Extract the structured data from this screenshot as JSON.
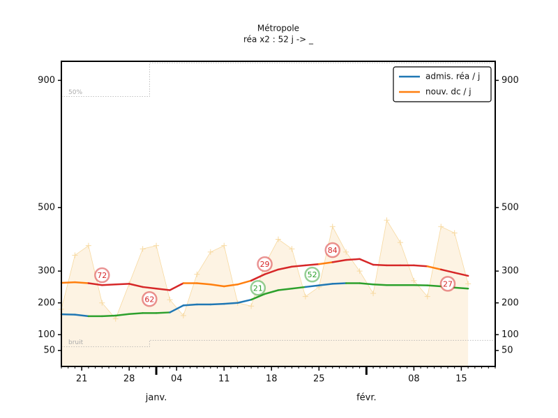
{
  "chart_data": {
    "type": "line",
    "title": "Métropole",
    "subtitle": "réa x2 : 52 j -> _",
    "x": [
      "12-18",
      "12-20",
      "12-22",
      "12-24",
      "12-26",
      "12-28",
      "12-30",
      "01-01",
      "01-03",
      "01-05",
      "01-07",
      "01-09",
      "01-11",
      "01-13",
      "01-15",
      "01-17",
      "01-19",
      "01-21",
      "01-23",
      "01-25",
      "01-27",
      "01-29",
      "01-31",
      "02-02",
      "02-04",
      "02-06",
      "02-08",
      "02-10",
      "02-12",
      "02-14",
      "02-16"
    ],
    "xlim": [
      "12-18",
      "02-20"
    ],
    "xticks": [
      {
        "value": "12-21",
        "label": "21"
      },
      {
        "value": "12-28",
        "label": "28"
      },
      {
        "value": "01-04",
        "label": "04"
      },
      {
        "value": "01-11",
        "label": "11"
      },
      {
        "value": "01-18",
        "label": "18"
      },
      {
        "value": "01-25",
        "label": "25"
      },
      {
        "value": "02-08",
        "label": "08"
      },
      {
        "value": "02-15",
        "label": "15"
      }
    ],
    "xticks_major": [
      {
        "value": "01-01",
        "label": "janv."
      },
      {
        "value": "02-01",
        "label": "févr."
      }
    ],
    "ylim": [
      0,
      960
    ],
    "yticks": [
      50,
      100,
      200,
      300,
      500,
      900
    ],
    "legend": "upper right",
    "daily": {
      "color": "#f7d9a0",
      "fill": "#fdf3e3",
      "values": [
        180,
        350,
        380,
        200,
        150,
        260,
        370,
        380,
        210,
        160,
        290,
        360,
        380,
        200,
        190,
        320,
        400,
        370,
        220,
        250,
        440,
        360,
        300,
        230,
        460,
        390,
        270,
        220,
        440,
        420,
        260
      ]
    },
    "references": [
      {
        "label": "50%",
        "color": "#aaaaaa",
        "values": [
          849,
          849,
          849,
          849,
          849,
          849,
          849,
          955,
          955,
          955,
          955,
          955,
          955,
          955,
          955,
          955,
          955,
          955,
          955,
          955,
          955,
          955,
          955,
          955,
          955,
          955,
          955,
          955,
          955,
          955,
          955
        ]
      },
      {
        "label": "bruit",
        "color": "#aaaaaa",
        "values": [
          62,
          62,
          62,
          62,
          62,
          62,
          62,
          82,
          82,
          82,
          82,
          82,
          82,
          82,
          82,
          82,
          82,
          82,
          82,
          82,
          82,
          82,
          82,
          82,
          82,
          82,
          82,
          82,
          82,
          82,
          82
        ]
      }
    ],
    "series": [
      {
        "name": "admis. réa / j",
        "color": "#1f77b4",
        "values": [
          164,
          163,
          158,
          158,
          160,
          165,
          168,
          168,
          170,
          192,
          195,
          195,
          197,
          200,
          210,
          228,
          240,
          245,
          250,
          255,
          260,
          262,
          262,
          258,
          256,
          256,
          256,
          255,
          252,
          248,
          245
        ],
        "point_colors": [
          "#1f77b4",
          "#1f77b4",
          "#2ca02c",
          "#2ca02c",
          "#2ca02c",
          "#2ca02c",
          "#2ca02c",
          "#2ca02c",
          "#1f77b4",
          "#1f77b4",
          "#1f77b4",
          "#1f77b4",
          "#1f77b4",
          "#1f77b4",
          "#2ca02c",
          "#2ca02c",
          "#2ca02c",
          "#2ca02c",
          "#1f77b4",
          "#1f77b4",
          "#1f77b4",
          "#2ca02c",
          "#2ca02c",
          "#2ca02c",
          "#2ca02c",
          "#2ca02c",
          "#2ca02c",
          "#2ca02c",
          "#2ca02c",
          "#2ca02c",
          "#2ca02c"
        ]
      },
      {
        "name": "nouv. dc / j",
        "color": "#ff7f0e",
        "values": [
          263,
          265,
          262,
          256,
          258,
          260,
          250,
          245,
          240,
          262,
          262,
          258,
          252,
          258,
          270,
          290,
          305,
          314,
          318,
          322,
          328,
          335,
          338,
          320,
          318,
          318,
          318,
          315,
          305,
          295,
          285
        ],
        "point_colors": [
          "#ff7f0e",
          "#ff7f0e",
          "#d62728",
          "#d62728",
          "#d62728",
          "#d62728",
          "#d62728",
          "#d62728",
          "#d62728",
          "#ff7f0e",
          "#ff7f0e",
          "#ff7f0e",
          "#ff7f0e",
          "#ff7f0e",
          "#d62728",
          "#d62728",
          "#d62728",
          "#d62728",
          "#d62728",
          "#ff7f0e",
          "#d62728",
          "#d62728",
          "#d62728",
          "#d62728",
          "#d62728",
          "#d62728",
          "#d62728",
          "#ff7f0e",
          "#d62728",
          "#d62728",
          "#d62728"
        ]
      }
    ],
    "annotations": [
      {
        "x": "12-24",
        "y": 287,
        "text": "72",
        "color": "#d62728"
      },
      {
        "x": "12-31",
        "y": 212,
        "text": "62",
        "color": "#d62728"
      },
      {
        "x": "01-17",
        "y": 322,
        "text": "29",
        "color": "#d62728"
      },
      {
        "x": "01-27",
        "y": 366,
        "text": "84",
        "color": "#d62728"
      },
      {
        "x": "02-13",
        "y": 260,
        "text": "27",
        "color": "#d62728"
      },
      {
        "x": "01-16",
        "y": 247,
        "text": "21",
        "color": "#2ca02c"
      },
      {
        "x": "01-24",
        "y": 289,
        "text": "52",
        "color": "#2ca02c"
      }
    ]
  }
}
